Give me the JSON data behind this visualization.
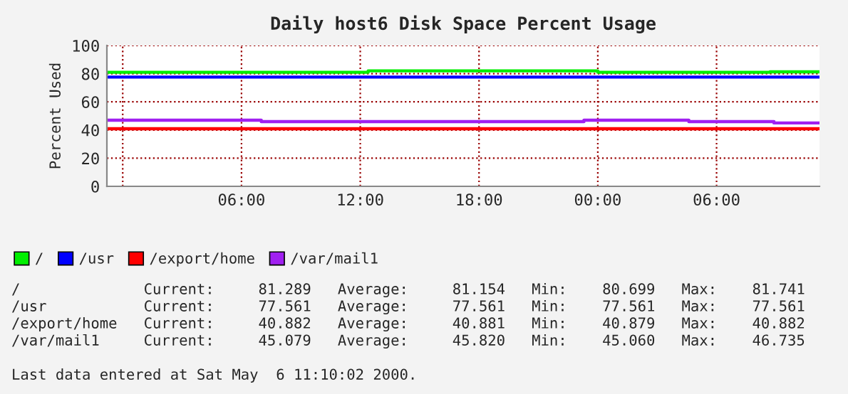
{
  "chart_data": {
    "type": "step",
    "title": "Daily host6 Disk Space Percent Usage",
    "ylabel": "Percent Used",
    "xlim": [
      "2000-05-04T23:12",
      "2000-05-06T11:12"
    ],
    "xticks": [
      {
        "value": "2000-05-05T00:00",
        "label": null
      },
      {
        "value": "2000-05-05T06:00",
        "label": "06:00"
      },
      {
        "value": "2000-05-05T12:00",
        "label": "12:00"
      },
      {
        "value": "2000-05-05T18:00",
        "label": "18:00"
      },
      {
        "value": "2000-05-06T00:00",
        "label": "00:00"
      },
      {
        "value": "2000-05-06T06:00",
        "label": "06:00"
      }
    ],
    "ylim": [
      0,
      100
    ],
    "yticks": [
      0,
      20,
      40,
      60,
      80,
      100
    ],
    "grid": true,
    "legend": "bottom",
    "series": [
      {
        "name": "/",
        "color": "#00ee00",
        "x": [
          "2000-05-04T23:12",
          "2000-05-05T12:24",
          "2000-05-06T00:00",
          "2000-05-06T08:42",
          "2000-05-06T11:12"
        ],
        "values": [
          81,
          82,
          81,
          81.3,
          81.3
        ]
      },
      {
        "name": "/usr",
        "color": "#0000ff",
        "x": [
          "2000-05-04T23:12",
          "2000-05-06T11:12"
        ],
        "values": [
          77.6,
          77.6
        ]
      },
      {
        "name": "/export/home",
        "color": "#ff0000",
        "x": [
          "2000-05-04T23:12",
          "2000-05-06T11:12"
        ],
        "values": [
          40.9,
          40.9
        ]
      },
      {
        "name": "/var/mail1",
        "color": "#a020f0",
        "x": [
          "2000-05-04T23:12",
          "2000-05-05T07:00",
          "2000-05-05T23:18",
          "2000-05-06T04:36",
          "2000-05-06T08:54",
          "2000-05-06T11:12"
        ],
        "values": [
          47,
          46,
          47,
          46,
          45,
          45
        ]
      }
    ],
    "annotations": [
      "/              Current:     81.289   Average:     81.154   Min:    80.699   Max:    81.741",
      "/usr           Current:     77.561   Average:     77.561   Min:    77.561   Max:    77.561",
      "/export/home   Current:     40.882   Average:     40.881   Min:    40.879   Max:    40.882",
      "/var/mail1     Current:     45.079   Average:     45.820   Min:    45.060   Max:    46.735",
      "Last data entered at Sat May  6 11:10:02 2000."
    ]
  }
}
